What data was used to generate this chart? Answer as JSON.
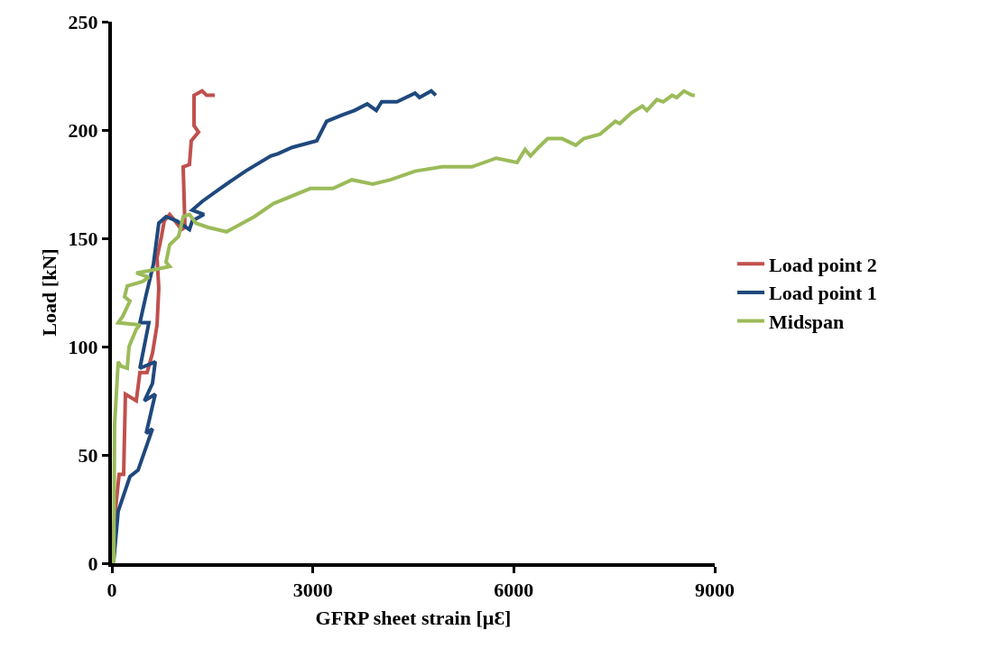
{
  "chart_data": {
    "type": "line",
    "xlabel": "GFRP sheet strain [µƐ]",
    "ylabel": "Load [kN]",
    "xlim": [
      0,
      9000
    ],
    "xticks": [
      0,
      3000,
      6000,
      9000
    ],
    "ylim": [
      0,
      250
    ],
    "yticks": [
      0,
      50,
      100,
      150,
      200,
      250
    ],
    "legend": "right",
    "marker": "none",
    "line_style": "solid",
    "series": [
      {
        "name": "Load point 2",
        "color": "#c0504d",
        "x": [
          0,
          40,
          108,
          175,
          202,
          364,
          418,
          525,
          606,
          674,
          700,
          674,
          741,
          781,
          862,
          943,
          1037,
          1091,
          1064,
          1158,
          1185,
          1293,
          1226,
          1226,
          1347,
          1414,
          1536
        ],
        "values": [
          0,
          21,
          41,
          41,
          78,
          75,
          88,
          88,
          97,
          110,
          127,
          141,
          151,
          158,
          161,
          158,
          154,
          155,
          183,
          184,
          195,
          199,
          202,
          216,
          218,
          216,
          216
        ]
      },
      {
        "name": "Load point 1",
        "color": "#1f497d",
        "x": [
          0,
          27,
          94,
          269,
          391,
          606,
          512,
          647,
          485,
          606,
          647,
          418,
          552,
          418,
          512,
          620,
          700,
          808,
          970,
          1158,
          1199,
          1374,
          1199,
          1347,
          1616,
          1994,
          2371,
          2478,
          2694,
          3058,
          3206,
          3448,
          3623,
          3812,
          3947,
          4028,
          4256,
          4526,
          4593,
          4768,
          4836
        ],
        "values": [
          0,
          1,
          24,
          40,
          43,
          62,
          60,
          78,
          75,
          83,
          93,
          90,
          111,
          111,
          124,
          138,
          157,
          160,
          158,
          154,
          158,
          161,
          163,
          167,
          173,
          181,
          188,
          189,
          192,
          195,
          204,
          207,
          209,
          212,
          209,
          213,
          213,
          217,
          215,
          218,
          216
        ]
      },
      {
        "name": "Midspan",
        "color": "#9bbb59",
        "x": [
          0,
          27,
          40,
          94,
          135,
          229,
          256,
          364,
          418,
          94,
          162,
          269,
          189,
          229,
          458,
          552,
          364,
          552,
          862,
          808,
          862,
          997,
          1064,
          1158,
          1253,
          1441,
          1711,
          2128,
          2411,
          2963,
          3300,
          3583,
          3893,
          4162,
          4526,
          4930,
          5375,
          5738,
          6048,
          6169,
          6250,
          6371,
          6506,
          6722,
          6924,
          7045,
          7287,
          7516,
          7584,
          7759,
          7920,
          7988,
          8136,
          8230,
          8365,
          8432,
          8540,
          8661,
          8702
        ],
        "values": [
          0,
          1,
          64,
          93,
          91,
          90,
          100,
          108,
          110,
          111,
          114,
          121,
          123,
          128,
          130,
          132,
          134,
          135,
          137,
          139,
          147,
          151,
          160,
          161,
          157,
          155,
          153,
          160,
          166,
          173,
          173,
          177,
          175,
          177,
          181,
          183,
          183,
          187,
          185,
          191,
          188,
          192,
          196,
          196,
          193,
          196,
          198,
          204,
          203,
          208,
          211,
          209,
          214,
          213,
          216,
          215,
          218,
          216,
          216
        ]
      }
    ]
  }
}
